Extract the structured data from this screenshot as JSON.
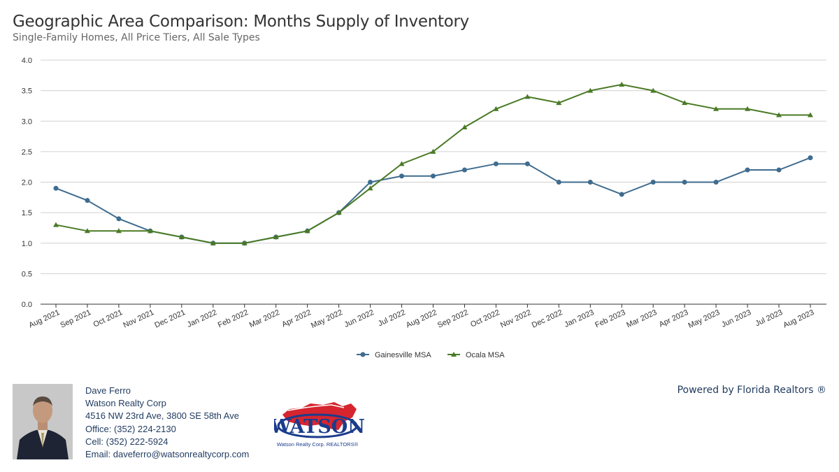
{
  "header": {
    "title": "Geographic Area Comparison: Months Supply of Inventory",
    "subtitle": "Single-Family Homes, All Price Tiers, All Sale Types"
  },
  "chart_data": {
    "type": "line",
    "title": "Geographic Area Comparison: Months Supply of Inventory",
    "subtitle": "Single-Family Homes, All Price Tiers, All Sale Types",
    "xlabel": "",
    "ylabel": "",
    "ylim": [
      0,
      4.0
    ],
    "yticks": [
      "0.0",
      "0.5",
      "1.0",
      "1.5",
      "2.0",
      "2.5",
      "3.0",
      "3.5",
      "4.0"
    ],
    "grid": true,
    "legend_position": "bottom-center",
    "categories": [
      "Aug 2021",
      "Sep 2021",
      "Oct 2021",
      "Nov 2021",
      "Dec 2021",
      "Jan 2022",
      "Feb 2022",
      "Mar 2022",
      "Apr 2022",
      "May 2022",
      "Jun 2022",
      "Jul 2022",
      "Aug 2022",
      "Sep 2022",
      "Oct 2022",
      "Nov 2022",
      "Dec 2022",
      "Jan 2023",
      "Feb 2023",
      "Mar 2023",
      "Apr 2023",
      "May 2023",
      "Jun 2023",
      "Jul 2023",
      "Aug 2023"
    ],
    "series": [
      {
        "name": "Gainesville MSA",
        "color": "#3f6c8f",
        "marker": "circle",
        "values": [
          1.9,
          1.7,
          1.4,
          1.2,
          1.1,
          1.0,
          1.0,
          1.1,
          1.2,
          1.5,
          2.0,
          2.1,
          2.1,
          2.2,
          2.3,
          2.3,
          2.0,
          2.0,
          1.8,
          2.0,
          2.0,
          2.0,
          2.2,
          2.2,
          2.4
        ]
      },
      {
        "name": "Ocala MSA",
        "color": "#4a7a26",
        "marker": "triangle",
        "values": [
          1.3,
          1.2,
          1.2,
          1.2,
          1.1,
          1.0,
          1.0,
          1.1,
          1.2,
          1.5,
          1.9,
          2.3,
          2.5,
          2.9,
          3.2,
          3.4,
          3.3,
          3.5,
          3.6,
          3.5,
          3.3,
          3.2,
          3.2,
          3.1,
          3.1
        ]
      }
    ]
  },
  "agent": {
    "name": "Dave Ferro",
    "company": "Watson Realty Corp",
    "address": "4516 NW 23rd Ave, 3800 SE 58th Ave",
    "office": "Office: (352) 224-2130",
    "cell": "Cell: (352) 222-5924",
    "email": "Email: daveferro@watsonrealtycorp.com"
  },
  "logo": {
    "wordmark": "WATSON",
    "tagline": "Watson Realty Corp. REALTORS®"
  },
  "powered_by": "Powered by Florida Realtors ®"
}
